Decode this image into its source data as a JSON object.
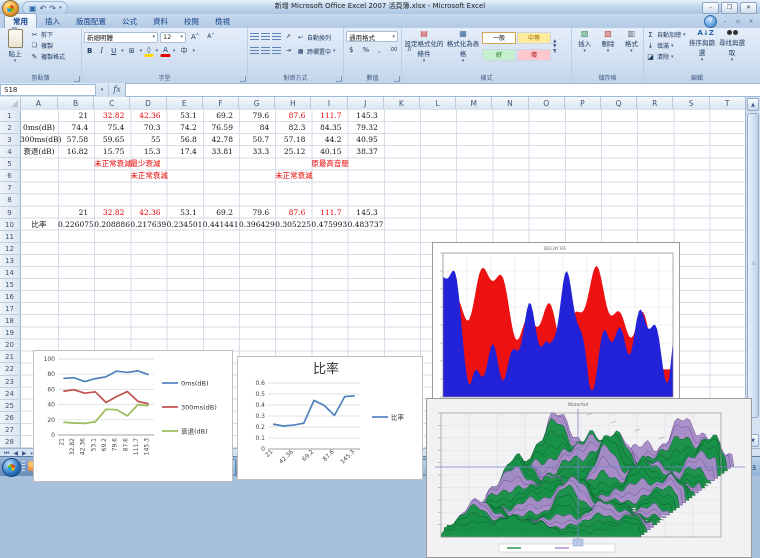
{
  "window": {
    "title": "新增 Microsoft Office Excel 2007 活頁簿.xlsx - Microsoft Excel",
    "controls": {
      "minimize": "–",
      "restore": "❐",
      "close": "✕"
    },
    "quick_access": {
      "save": "💾",
      "undo": "↶",
      "redo": "↷",
      "more": "▾"
    },
    "help": "?"
  },
  "ribbon": {
    "tabs": [
      {
        "label": "常用",
        "active": true
      },
      {
        "label": "插入",
        "active": false
      },
      {
        "label": "版面配置",
        "active": false
      },
      {
        "label": "公式",
        "active": false
      },
      {
        "label": "資料",
        "active": false
      },
      {
        "label": "校閱",
        "active": false
      },
      {
        "label": "檢視",
        "active": false
      }
    ],
    "groups": {
      "clipboard": {
        "label": "剪貼簿",
        "paste": "貼上",
        "cut": "剪下",
        "copy": "複製",
        "format_painter": "複製格式"
      },
      "font": {
        "label": "字型",
        "font_name": "新細明體",
        "font_size": "12",
        "bold": "B",
        "italic": "I",
        "underline": "U",
        "phonetic": "中"
      },
      "alignment": {
        "label": "對齊方式",
        "wrap": "自動換列",
        "merge": "跨欄置中"
      },
      "number": {
        "label": "數值",
        "format": "通用格式",
        "currency": "$",
        "percent": "%",
        "comma": ",",
        "inc_dec": ".00",
        "dec_dec": ".0"
      },
      "styles": {
        "label": "樣式",
        "conditional": "設定格式化的條件",
        "format_table": "格式化為表格",
        "gallery": [
          {
            "label": "一般",
            "bg": "#ffffff",
            "fg": "#000000",
            "selected": true
          },
          {
            "label": "中等",
            "bg": "#ffeb9c",
            "fg": "#9c6500",
            "selected": false
          },
          {
            "label": "好",
            "bg": "#c6efce",
            "fg": "#006100",
            "selected": false
          },
          {
            "label": "壞",
            "bg": "#ffc7ce",
            "fg": "#9c0006",
            "selected": false
          }
        ]
      },
      "cells": {
        "label": "儲存格",
        "insert": "插入",
        "delete": "刪除",
        "format": "格式"
      },
      "editing": {
        "label": "編輯",
        "autosum": "自動加總",
        "fill": "填滿",
        "clear": "清除",
        "sort": "排序與篩選",
        "find": "尋找與選取"
      }
    }
  },
  "formula_bar": {
    "name_box": "S18",
    "fx": "fx",
    "value": ""
  },
  "sheet": {
    "columns": [
      "A",
      "B",
      "C",
      "D",
      "E",
      "F",
      "G",
      "H",
      "I",
      "J",
      "K",
      "L",
      "M",
      "N",
      "O",
      "P",
      "Q",
      "R",
      "S",
      "T"
    ],
    "row_count": 28,
    "rows": [
      {
        "n": 1,
        "cells": [
          {
            "c": "B",
            "t": "21"
          },
          {
            "c": "C",
            "t": "32.82",
            "red": true
          },
          {
            "c": "D",
            "t": "42.36",
            "red": true
          },
          {
            "c": "E",
            "t": "53.1"
          },
          {
            "c": "F",
            "t": "69.2"
          },
          {
            "c": "G",
            "t": "79.6"
          },
          {
            "c": "H",
            "t": "87.6",
            "red": true
          },
          {
            "c": "I",
            "t": "111.7",
            "red": true
          },
          {
            "c": "J",
            "t": "145.3"
          }
        ]
      },
      {
        "n": 2,
        "cells": [
          {
            "c": "A",
            "t": "0ms(dB)",
            "lab": true
          },
          {
            "c": "B",
            "t": "74.4"
          },
          {
            "c": "C",
            "t": "75.4"
          },
          {
            "c": "D",
            "t": "70.3"
          },
          {
            "c": "E",
            "t": "74.2"
          },
          {
            "c": "F",
            "t": "76.59"
          },
          {
            "c": "G",
            "t": "84"
          },
          {
            "c": "H",
            "t": "82.3"
          },
          {
            "c": "I",
            "t": "84.35"
          },
          {
            "c": "J",
            "t": "79.32"
          }
        ]
      },
      {
        "n": 3,
        "cells": [
          {
            "c": "A",
            "t": "300ms(dB)",
            "lab": true
          },
          {
            "c": "B",
            "t": "57.58"
          },
          {
            "c": "C",
            "t": "59.65"
          },
          {
            "c": "D",
            "t": "55"
          },
          {
            "c": "E",
            "t": "56.8"
          },
          {
            "c": "F",
            "t": "42.78"
          },
          {
            "c": "G",
            "t": "50.7"
          },
          {
            "c": "H",
            "t": "57.18"
          },
          {
            "c": "I",
            "t": "44.2"
          },
          {
            "c": "J",
            "t": "40.95"
          }
        ]
      },
      {
        "n": 4,
        "cells": [
          {
            "c": "A",
            "t": "衰退(dB)",
            "lab": true
          },
          {
            "c": "B",
            "t": "16.82"
          },
          {
            "c": "C",
            "t": "15.75"
          },
          {
            "c": "D",
            "t": "15.3"
          },
          {
            "c": "E",
            "t": "17.4"
          },
          {
            "c": "F",
            "t": "33.81"
          },
          {
            "c": "G",
            "t": "33.3"
          },
          {
            "c": "H",
            "t": "25.12"
          },
          {
            "c": "I",
            "t": "40.15"
          },
          {
            "c": "J",
            "t": "38.37"
          }
        ]
      },
      {
        "n": 5,
        "cells": [
          {
            "c": "C",
            "t": "未正常衰減",
            "red": true,
            "note": true
          },
          {
            "c": "D",
            "t": "最少衰減",
            "red": true,
            "note": true
          },
          {
            "c": "I",
            "t": "原最高音壓",
            "red": true,
            "note": true
          }
        ]
      },
      {
        "n": 6,
        "cells": [
          {
            "c": "D",
            "t": "未正常衰減",
            "red": true,
            "note": true
          },
          {
            "c": "H",
            "t": "未正常衰減",
            "red": true,
            "note": true
          }
        ]
      },
      {
        "n": 9,
        "cells": [
          {
            "c": "B",
            "t": "21"
          },
          {
            "c": "C",
            "t": "32.82",
            "red": true
          },
          {
            "c": "D",
            "t": "42.36",
            "red": true
          },
          {
            "c": "E",
            "t": "53.1"
          },
          {
            "c": "F",
            "t": "69.2"
          },
          {
            "c": "G",
            "t": "79.6"
          },
          {
            "c": "H",
            "t": "87.6",
            "red": true
          },
          {
            "c": "I",
            "t": "111.7",
            "red": true
          },
          {
            "c": "J",
            "t": "145.3"
          }
        ]
      },
      {
        "n": 10,
        "cells": [
          {
            "c": "A",
            "t": "比率",
            "lab": true
          },
          {
            "c": "B",
            "t": "0.226075"
          },
          {
            "c": "C",
            "t": "0.208886"
          },
          {
            "c": "D",
            "t": "0.217639"
          },
          {
            "c": "E",
            "t": "0.234501"
          },
          {
            "c": "F",
            "t": "0.441441"
          },
          {
            "c": "G",
            "t": "0.396429"
          },
          {
            "c": "H",
            "t": "0.305225"
          },
          {
            "c": "I",
            "t": "0.475993"
          },
          {
            "c": "J",
            "t": "0.483737"
          }
        ]
      }
    ],
    "tabs": [
      "L",
      "R",
      "C",
      "SUB",
      "LS",
      "RS"
    ]
  },
  "chart_data": [
    {
      "type": "line",
      "title": "",
      "categories": [
        "21",
        "32.82",
        "42.36",
        "53.1",
        "69.2",
        "79.6",
        "87.6",
        "111.7",
        "145.3"
      ],
      "series": [
        {
          "name": "0ms(dB)",
          "color": "#4f81bd",
          "values": [
            74.4,
            75.4,
            70.3,
            74.2,
            76.59,
            84,
            82.3,
            84.35,
            79.32
          ]
        },
        {
          "name": "300ms(dB)",
          "color": "#c0504d",
          "values": [
            57.58,
            59.65,
            55,
            56.8,
            42.78,
            50.7,
            57.18,
            44.2,
            40.95
          ]
        },
        {
          "name": "衰退(dB)",
          "color": "#9bbb59",
          "values": [
            16.82,
            15.75,
            15.3,
            17.4,
            33.81,
            33.3,
            25.12,
            40.15,
            38.37
          ]
        }
      ],
      "ylim": [
        0,
        100
      ],
      "ytick": 20,
      "grid": true,
      "legend_position": "right"
    },
    {
      "type": "line",
      "title": "比率",
      "categories": [
        "21",
        "32.82",
        "42.36",
        "53.1",
        "69.2",
        "79.6",
        "87.6",
        "111.7",
        "145.3"
      ],
      "xticks_shown": [
        "21",
        "42.36",
        "69.2",
        "87.6",
        "145.3"
      ],
      "series": [
        {
          "name": "比率",
          "color": "#4f81bd",
          "values": [
            0.226075,
            0.208886,
            0.217639,
            0.234501,
            0.441441,
            0.396429,
            0.305225,
            0.475993,
            0.483737
          ]
        }
      ],
      "ylim": [
        0,
        0.6
      ],
      "ytick": 0.1,
      "grid": true,
      "legend_position": "right"
    },
    {
      "type": "area",
      "title": "DECAY RE",
      "description": "embedded picture of REW decay spectrum; red = early energy envelope, blue = late energy envelope",
      "palette": [
        "#ee1111",
        "#2222d8"
      ]
    },
    {
      "type": "area",
      "title": "Waterfall",
      "description": "embedded picture of REW 3D waterfall plot with interleaved green and purple decay slices, blue crosshair lines",
      "palette": [
        "#189148",
        "#a88cc8"
      ]
    }
  ],
  "taskbar": {
    "items": [
      {
        "icon": "folder",
        "label": "管理畫面"
      },
      {
        "icon": "ie",
        "label": ""
      },
      {
        "icon": "chrome",
        "label": ""
      },
      {
        "icon": "person",
        "label": "音響林大哥"
      },
      {
        "icon": "line",
        "label": "LINE"
      },
      {
        "icon": "chrome",
        "label": "(4) 【Excel 201..."
      },
      {
        "icon": "rew",
        "label": "REW V5.19 Bet..."
      },
      {
        "icon": "excel",
        "label": "新增 Microsoft ...",
        "active": true
      }
    ],
    "tray": {
      "ime": "中",
      "clock": "下午 04:53"
    }
  }
}
